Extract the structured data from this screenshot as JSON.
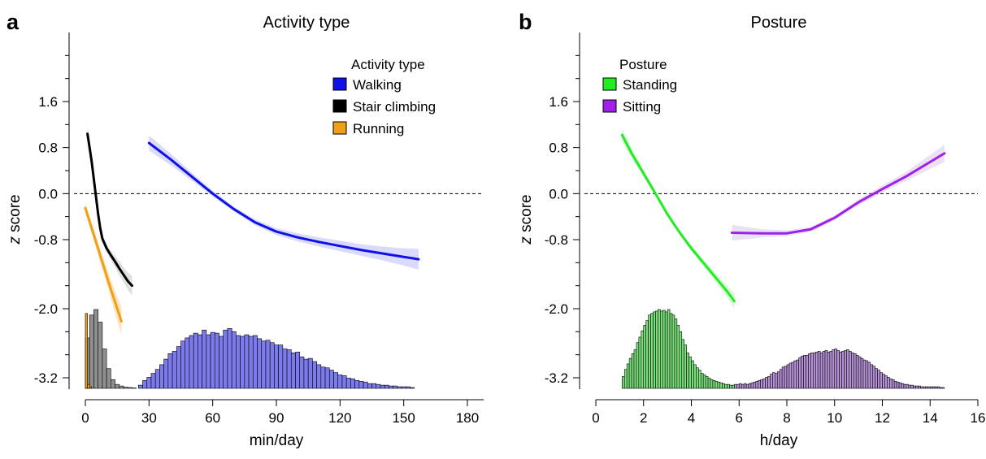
{
  "chart_data": [
    {
      "panel_letter": "a",
      "type": "line",
      "title": "Activity type",
      "xlabel": "min/day",
      "ylabel_italic": "z",
      "ylabel_rest": " score",
      "xlim": [
        0,
        180
      ],
      "ylim": [
        -3.55,
        2.6
      ],
      "xticks": [
        0,
        30,
        60,
        90,
        120,
        150,
        180
      ],
      "yticks": [
        1.6,
        0.8,
        0.0,
        -0.8,
        -2.0,
        -3.2
      ],
      "ytick_labels": [
        "1.6",
        "0.8",
        "0.0",
        "-0.8",
        "-2.0",
        "-3.2"
      ],
      "yminor": [
        2.0,
        1.2,
        0.4,
        -0.4,
        -1.2,
        -1.6,
        -2.4,
        -2.8
      ],
      "zero_line": 0,
      "legend": {
        "title": "Activity type",
        "placement": "top-right"
      },
      "series": [
        {
          "name": "Walking",
          "color": "#1010e8",
          "fill": "#7b7bec",
          "x": [
            30,
            40,
            50,
            60,
            70,
            80,
            90,
            100,
            110,
            120,
            130,
            140,
            150,
            157
          ],
          "y": [
            0.88,
            0.6,
            0.3,
            0.0,
            -0.27,
            -0.5,
            -0.66,
            -0.76,
            -0.84,
            -0.91,
            -0.98,
            -1.04,
            -1.1,
            -1.14
          ],
          "band": [
            0.13,
            0.1,
            0.07,
            0.05,
            0.04,
            0.05,
            0.06,
            0.07,
            0.08,
            0.09,
            0.1,
            0.12,
            0.15,
            0.18
          ],
          "hist_start": 25,
          "hist_width": 2,
          "hist": [
            0.04,
            0.1,
            0.14,
            0.19,
            0.24,
            0.3,
            0.37,
            0.44,
            0.47,
            0.53,
            0.6,
            0.64,
            0.67,
            0.7,
            0.68,
            0.74,
            0.68,
            0.71,
            0.7,
            0.66,
            0.74,
            0.76,
            0.72,
            0.67,
            0.66,
            0.68,
            0.66,
            0.67,
            0.63,
            0.6,
            0.61,
            0.58,
            0.55,
            0.55,
            0.5,
            0.49,
            0.45,
            0.46,
            0.4,
            0.37,
            0.38,
            0.34,
            0.3,
            0.27,
            0.26,
            0.23,
            0.2,
            0.17,
            0.16,
            0.13,
            0.12,
            0.1,
            0.09,
            0.08,
            0.06,
            0.06,
            0.05,
            0.04,
            0.04,
            0.03,
            0.03,
            0.02,
            0.02,
            0.02,
            0.01
          ]
        },
        {
          "name": "Stair climbing",
          "color": "#000000",
          "fill": "#8f8f8f",
          "x": [
            1,
            2,
            3,
            4,
            5,
            6,
            7,
            8,
            10,
            12,
            14,
            16,
            18,
            20,
            22
          ],
          "y": [
            1.04,
            0.8,
            0.55,
            0.25,
            -0.05,
            -0.35,
            -0.6,
            -0.78,
            -0.95,
            -1.07,
            -1.18,
            -1.3,
            -1.41,
            -1.52,
            -1.6
          ],
          "band": [
            0.14,
            0.11,
            0.08,
            0.06,
            0.05,
            0.05,
            0.06,
            0.06,
            0.07,
            0.08,
            0.1,
            0.12,
            0.13,
            0.15,
            0.17
          ],
          "hist_start": 0,
          "hist_width": 2,
          "hist": [
            0.64,
            0.93,
            1.0,
            0.84,
            0.5,
            0.25,
            0.11,
            0.05,
            0.03,
            0.015,
            0.01,
            0.005
          ]
        },
        {
          "name": "Running",
          "color": "#f0a015",
          "fill": "#f0a015",
          "x": [
            0,
            4,
            8,
            12,
            17
          ],
          "y": [
            -0.25,
            -0.72,
            -1.19,
            -1.66,
            -2.22
          ],
          "band": [
            0.08,
            0.1,
            0.12,
            0.16,
            0.24
          ],
          "hist_start": 0,
          "hist_width": 1,
          "hist": [
            0.95,
            0.05,
            0.02
          ]
        }
      ]
    },
    {
      "panel_letter": "b",
      "type": "line",
      "title": "Posture",
      "xlabel": "h/day",
      "ylabel_italic": "z",
      "ylabel_rest": " score",
      "xlim": [
        0,
        16
      ],
      "ylim": [
        -3.55,
        2.6
      ],
      "xticks": [
        0,
        2,
        4,
        6,
        8,
        10,
        12,
        14,
        16
      ],
      "yticks": [
        1.6,
        0.8,
        0.0,
        -0.8,
        -2.0,
        -3.2
      ],
      "ytick_labels": [
        "1.6",
        "0.8",
        "0.0",
        "-0.8",
        "-2.0",
        "-3.2"
      ],
      "yminor": [
        2.0,
        1.2,
        0.4,
        -0.4,
        -1.2,
        -1.6,
        -2.4,
        -2.8
      ],
      "zero_line": 0,
      "legend": {
        "title": "Posture",
        "placement": "top-left"
      },
      "series": [
        {
          "name": "Standing",
          "color": "#20ee20",
          "fill": "#7be07b",
          "x": [
            1.1,
            1.5,
            2.0,
            2.5,
            3.0,
            3.5,
            4.0,
            4.5,
            5.0,
            5.5,
            5.8
          ],
          "y": [
            1.02,
            0.7,
            0.35,
            0.0,
            -0.36,
            -0.67,
            -0.95,
            -1.2,
            -1.45,
            -1.7,
            -1.87
          ],
          "band": [
            0.12,
            0.09,
            0.06,
            0.04,
            0.04,
            0.04,
            0.05,
            0.06,
            0.08,
            0.1,
            0.13
          ],
          "hist_start": 1.1,
          "hist_width": 0.1,
          "hist": [
            0.15,
            0.24,
            0.31,
            0.38,
            0.44,
            0.49,
            0.58,
            0.65,
            0.73,
            0.8,
            0.86,
            0.93,
            0.95,
            0.97,
            0.98,
            1.0,
            0.98,
            0.99,
            0.97,
            1.0,
            0.95,
            0.93,
            0.88,
            0.8,
            0.72,
            0.62,
            0.55,
            0.45,
            0.4,
            0.35,
            0.3,
            0.26,
            0.23,
            0.19,
            0.17,
            0.15,
            0.13,
            0.11,
            0.1,
            0.09,
            0.08,
            0.07,
            0.06,
            0.05,
            0.05,
            0.04,
            0.04
          ]
        },
        {
          "name": "Sitting",
          "color": "#a020e8",
          "fill": "#b592d6",
          "x": [
            5.7,
            7.0,
            8.0,
            9.0,
            10.0,
            11.0,
            12.0,
            13.0,
            14.0,
            14.6
          ],
          "y": [
            -0.68,
            -0.69,
            -0.69,
            -0.62,
            -0.42,
            -0.15,
            0.08,
            0.3,
            0.55,
            0.7
          ],
          "band": [
            0.14,
            0.07,
            0.05,
            0.04,
            0.04,
            0.05,
            0.06,
            0.08,
            0.12,
            0.15
          ],
          "hist_start": 5.8,
          "hist_width": 0.1,
          "hist": [
            0.05,
            0.05,
            0.06,
            0.05,
            0.06,
            0.05,
            0.06,
            0.07,
            0.08,
            0.09,
            0.1,
            0.11,
            0.12,
            0.14,
            0.15,
            0.18,
            0.2,
            0.19,
            0.21,
            0.24,
            0.27,
            0.28,
            0.3,
            0.32,
            0.33,
            0.35,
            0.36,
            0.39,
            0.41,
            0.42,
            0.42,
            0.44,
            0.45,
            0.45,
            0.46,
            0.47,
            0.45,
            0.47,
            0.48,
            0.46,
            0.47,
            0.49,
            0.5,
            0.48,
            0.46,
            0.47,
            0.48,
            0.49,
            0.47,
            0.45,
            0.44,
            0.42,
            0.4,
            0.38,
            0.36,
            0.35,
            0.33,
            0.3,
            0.28,
            0.25,
            0.23,
            0.2,
            0.18,
            0.16,
            0.14,
            0.12,
            0.11,
            0.09,
            0.08,
            0.07,
            0.06,
            0.05,
            0.05,
            0.04,
            0.04,
            0.03,
            0.03,
            0.03,
            0.02,
            0.02,
            0.02,
            0.02,
            0.02,
            0.02,
            0.02,
            0.02,
            0.01,
            0.01
          ]
        }
      ]
    }
  ]
}
